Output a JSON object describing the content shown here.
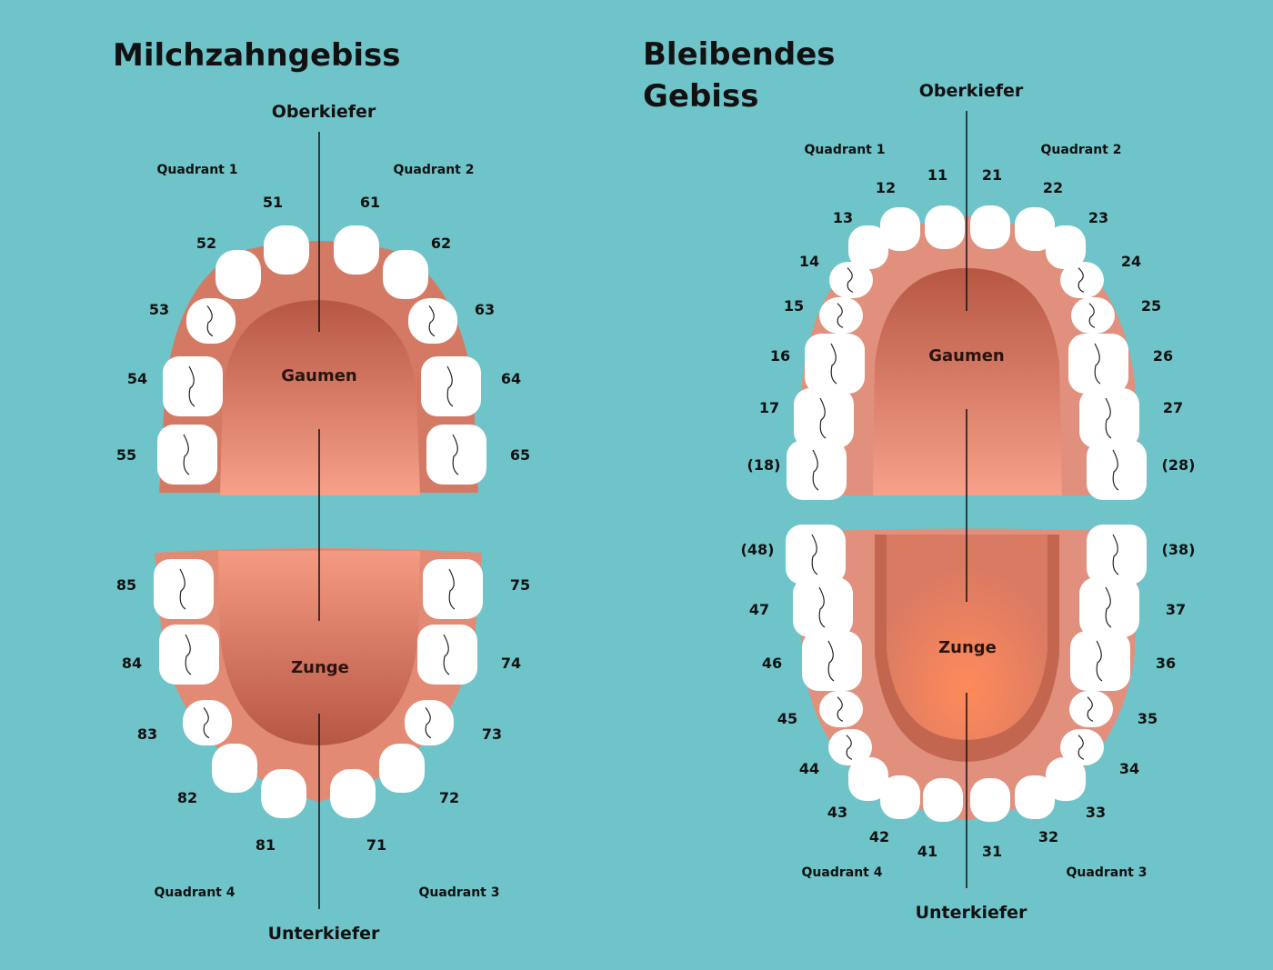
{
  "colors": {
    "background": "#6fc4ca",
    "gum": "#e2907c",
    "palate": "#b95c4a",
    "tongue_light": "#ff8a5c",
    "tooth": "#ffffff"
  },
  "primary": {
    "title": "Milchzahngebiss",
    "upper_jaw": "Oberkiefer",
    "lower_jaw": "Unterkiefer",
    "palate": "Gaumen",
    "tongue": "Zunge",
    "quadrants": [
      "Quadrant 1",
      "Quadrant 2",
      "Quadrant 3",
      "Quadrant 4"
    ],
    "teeth": [
      "51",
      "61",
      "52",
      "62",
      "53",
      "63",
      "54",
      "64",
      "55",
      "65",
      "85",
      "75",
      "84",
      "74",
      "83",
      "73",
      "82",
      "72",
      "81",
      "71"
    ]
  },
  "permanent": {
    "title_line1": "Bleibendes",
    "title_line2": "Gebiss",
    "upper_jaw": "Oberkiefer",
    "lower_jaw": "Unterkiefer",
    "palate": "Gaumen",
    "tongue": "Zunge",
    "quadrants": [
      "Quadrant 1",
      "Quadrant 2",
      "Quadrant 3",
      "Quadrant 4"
    ],
    "teeth": [
      "11",
      "21",
      "12",
      "22",
      "13",
      "23",
      "14",
      "24",
      "15",
      "25",
      "16",
      "26",
      "17",
      "27",
      "(18)",
      "(28)",
      "(48)",
      "(38)",
      "47",
      "37",
      "46",
      "36",
      "45",
      "35",
      "44",
      "34",
      "43",
      "33",
      "42",
      "32",
      "41",
      "31"
    ]
  }
}
